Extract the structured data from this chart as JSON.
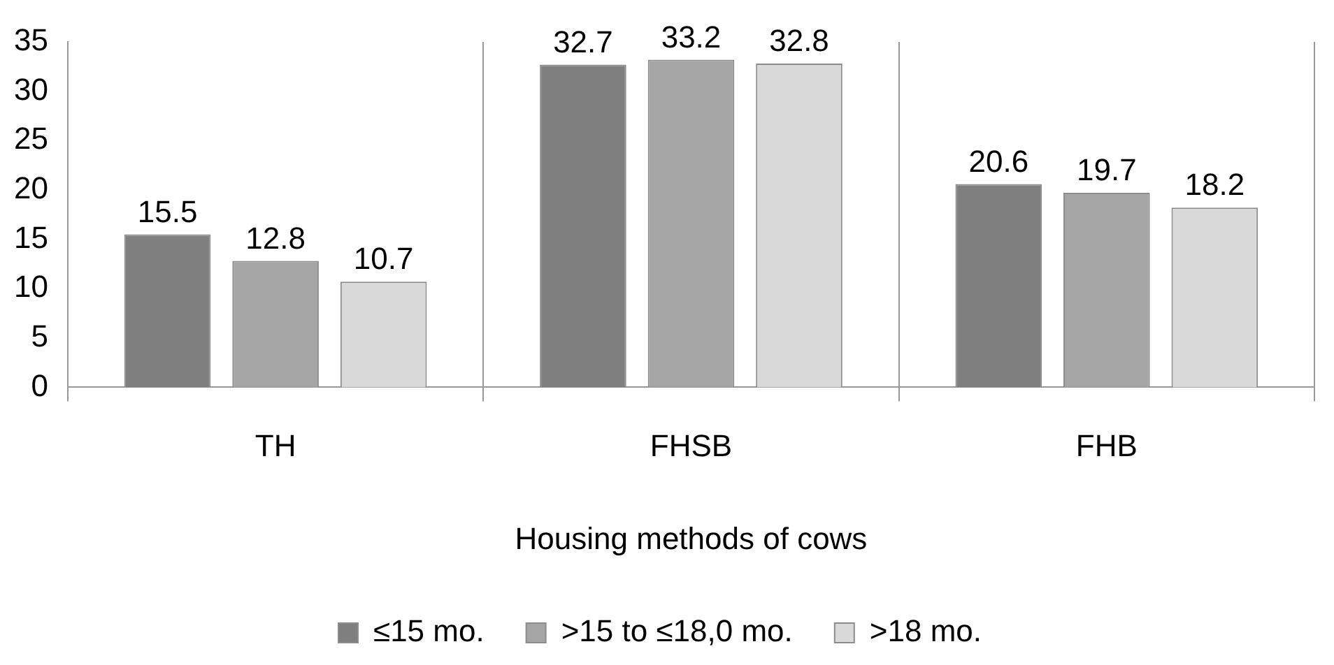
{
  "chart_data": {
    "type": "bar",
    "xlabel": "Housing methods of cows",
    "categories": [
      "TH",
      "FHSB",
      "FHB"
    ],
    "series": [
      {
        "name": "≤15 mo.",
        "color": "#7f7f7f",
        "values": [
          15.5,
          32.7,
          20.6
        ]
      },
      {
        "name": ">15 to ≤18,0 mo.",
        "color": "#a5a5a5",
        "values": [
          12.8,
          33.2,
          19.7
        ]
      },
      {
        "name": ">18 mo.",
        "color": "#d9d9d9",
        "values": [
          10.7,
          32.8,
          18.2
        ]
      }
    ],
    "ylim": [
      0,
      35
    ],
    "yticks": [
      0,
      5,
      10,
      15,
      20,
      25,
      30,
      35
    ],
    "grid": "x",
    "legend": "bottom",
    "data_labels": true
  }
}
